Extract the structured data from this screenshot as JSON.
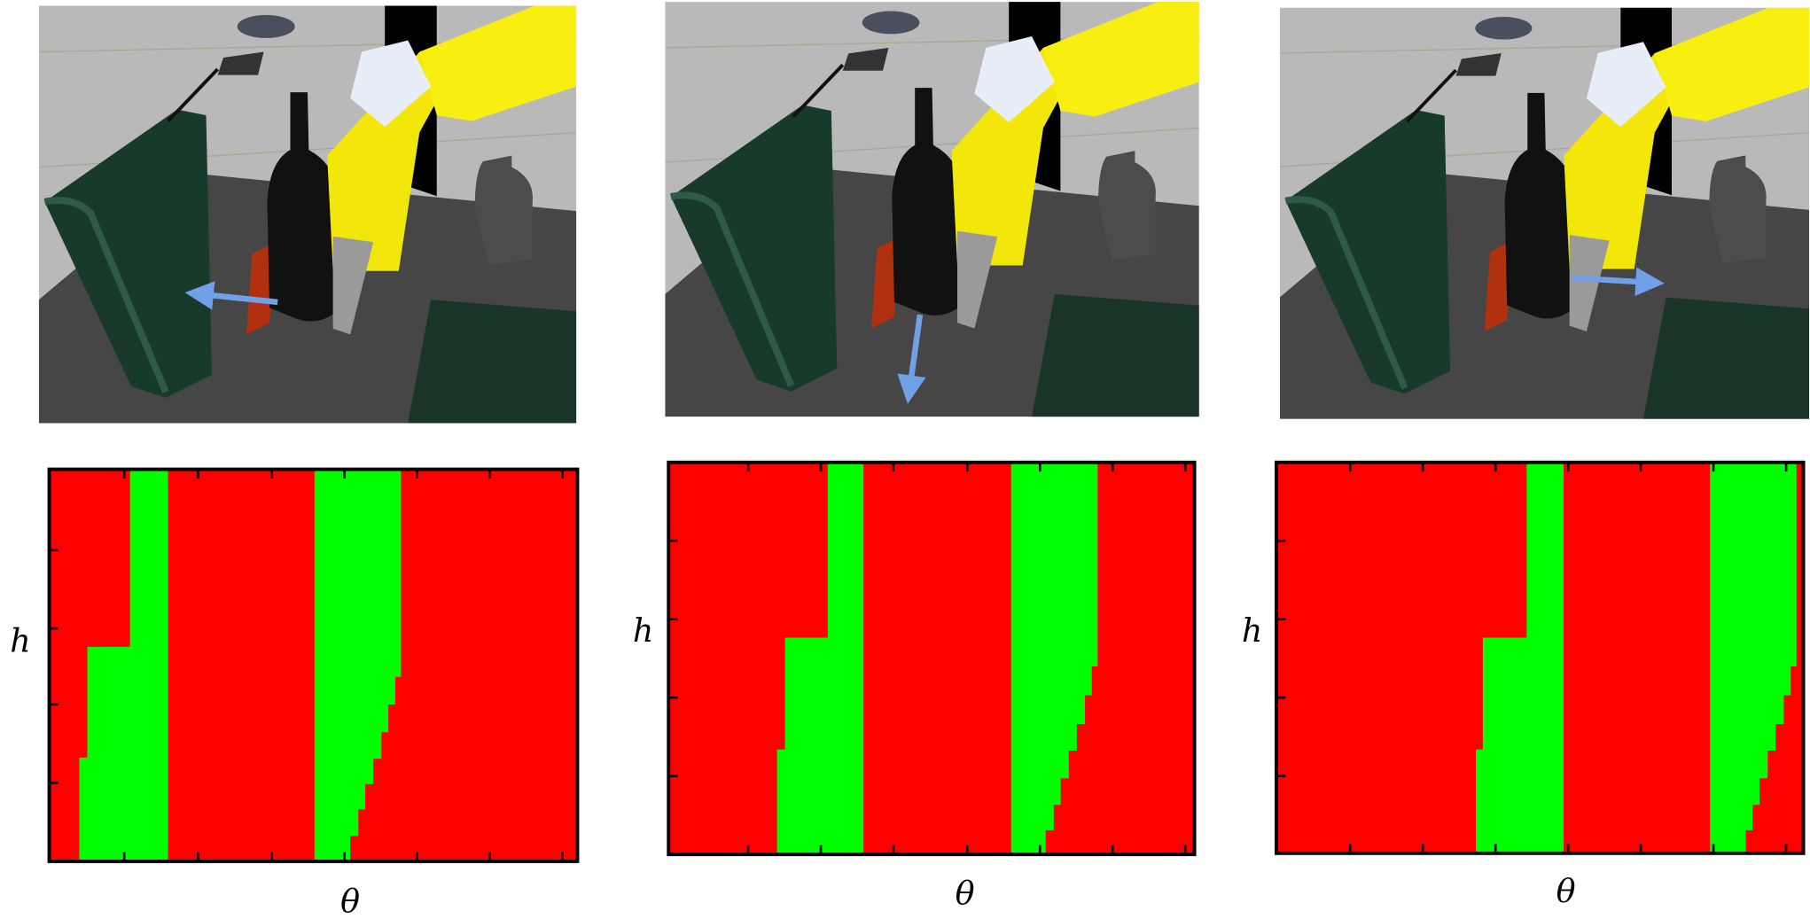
{
  "panels": [
    {
      "y_label": "h",
      "x_label": "θ"
    },
    {
      "y_label": "h",
      "x_label": "θ"
    },
    {
      "y_label": "h",
      "x_label": "θ"
    }
  ]
}
